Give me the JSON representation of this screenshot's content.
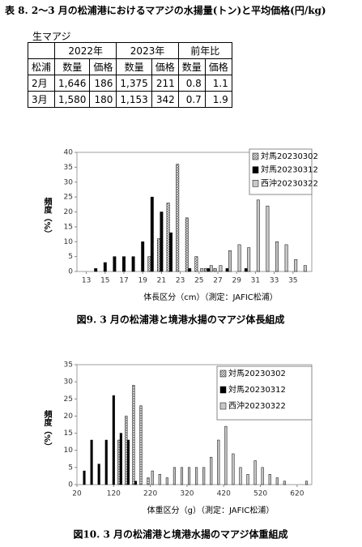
{
  "title": "表 8. 2～3 月の松浦港におけるマアジの水揚量(トン)と平均価格(円/kg)",
  "table": {
    "label": "生マアジ",
    "headers": [
      "2022年",
      "2023年",
      "前年比"
    ],
    "subheaders": [
      "松浦",
      "数量",
      "価格",
      "数量",
      "価格",
      "数量",
      "価格"
    ],
    "rows": [
      [
        "2月",
        "1,646",
        "186",
        "1,375",
        "211",
        "0.8",
        "1.1"
      ],
      [
        "3月",
        "1,580",
        "180",
        "1,153",
        "342",
        "0.7",
        "1.9"
      ]
    ]
  },
  "chart_data": [
    {
      "type": "bar",
      "x_label": "体長区分（cm）（測定：JAFIC松浦）",
      "y_label": "頻度（%）",
      "caption": "図9. 3 月の松浦港と境港水揚のマアジ体長組成",
      "x": [
        13,
        14,
        15,
        16,
        17,
        18,
        19,
        20,
        21,
        22,
        23,
        24,
        25,
        26,
        27,
        28,
        29,
        30,
        31,
        32,
        33,
        34,
        35,
        36
      ],
      "xlim": [
        12,
        37
      ],
      "xticks": [
        13,
        15,
        17,
        19,
        21,
        23,
        25,
        27,
        29,
        31,
        33,
        35
      ],
      "ylim": [
        0,
        40
      ],
      "yticks": [
        0,
        5,
        10,
        15,
        20,
        25,
        30,
        35,
        40
      ],
      "legend": "top-right",
      "series": [
        {
          "name": "対馬20230302",
          "color": "#ffffff",
          "pattern": "crosshatch",
          "values": [
            0,
            0,
            0,
            0,
            0,
            0,
            0,
            5,
            11,
            23,
            36,
            18,
            5,
            1,
            1,
            0,
            0,
            0,
            0,
            0,
            0,
            0,
            0,
            0
          ]
        },
        {
          "name": "対馬20230312",
          "color": "#000000",
          "values": [
            0,
            1,
            3,
            5,
            5,
            5,
            10,
            25,
            20,
            13,
            0,
            1,
            0,
            1,
            0,
            1,
            0,
            1,
            0,
            0,
            0,
            0,
            0,
            0
          ]
        },
        {
          "name": "西沖20230322",
          "color": "#c8c8c8",
          "values": [
            0,
            0,
            0,
            0,
            0,
            0,
            0,
            0,
            0,
            0,
            0,
            0,
            1,
            2,
            2,
            7,
            9,
            8,
            24,
            22,
            10,
            9,
            4,
            2
          ]
        }
      ]
    },
    {
      "type": "bar",
      "x_label": "体重区分（g）（測定：JAFIC松浦）",
      "y_label": "頻度（%）",
      "caption": "図10. 3 月の松浦港と境港水揚のマアジ体重組成",
      "x": [
        40,
        60,
        80,
        100,
        120,
        140,
        160,
        180,
        200,
        220,
        240,
        260,
        280,
        300,
        320,
        340,
        360,
        380,
        400,
        420,
        440,
        460,
        480,
        500,
        520,
        540,
        560,
        580,
        600,
        620,
        640
      ],
      "xlim": [
        20,
        660
      ],
      "xticks": [
        20,
        120,
        220,
        320,
        420,
        520,
        620
      ],
      "ylim": [
        0,
        35
      ],
      "yticks": [
        0,
        5,
        10,
        15,
        20,
        25,
        30,
        35
      ],
      "legend": "top-right",
      "series": [
        {
          "name": "対馬20230302",
          "color": "#ffffff",
          "pattern": "crosshatch",
          "values": [
            0,
            0,
            0,
            0,
            0,
            13,
            20,
            29,
            23,
            2,
            0,
            0,
            0,
            0,
            0,
            0,
            0,
            0,
            0,
            0,
            0,
            0,
            0,
            0,
            0,
            0,
            0,
            0,
            0,
            0,
            0
          ]
        },
        {
          "name": "対馬20230312",
          "color": "#000000",
          "values": [
            4,
            13,
            6,
            13,
            26,
            15,
            13,
            1,
            0,
            0,
            0,
            0,
            0,
            0,
            0,
            0,
            0,
            0,
            0,
            0,
            0,
            0,
            0,
            0,
            0,
            0,
            0,
            0,
            0,
            0,
            0
          ]
        },
        {
          "name": "西沖20230322",
          "color": "#c8c8c8",
          "values": [
            0,
            0,
            0,
            0,
            0,
            0,
            0,
            0,
            0,
            4,
            3,
            2,
            5,
            5,
            5,
            5,
            5,
            8,
            13,
            17,
            9,
            5,
            3,
            7,
            5,
            3,
            2,
            1,
            0,
            0,
            1
          ]
        }
      ]
    }
  ]
}
